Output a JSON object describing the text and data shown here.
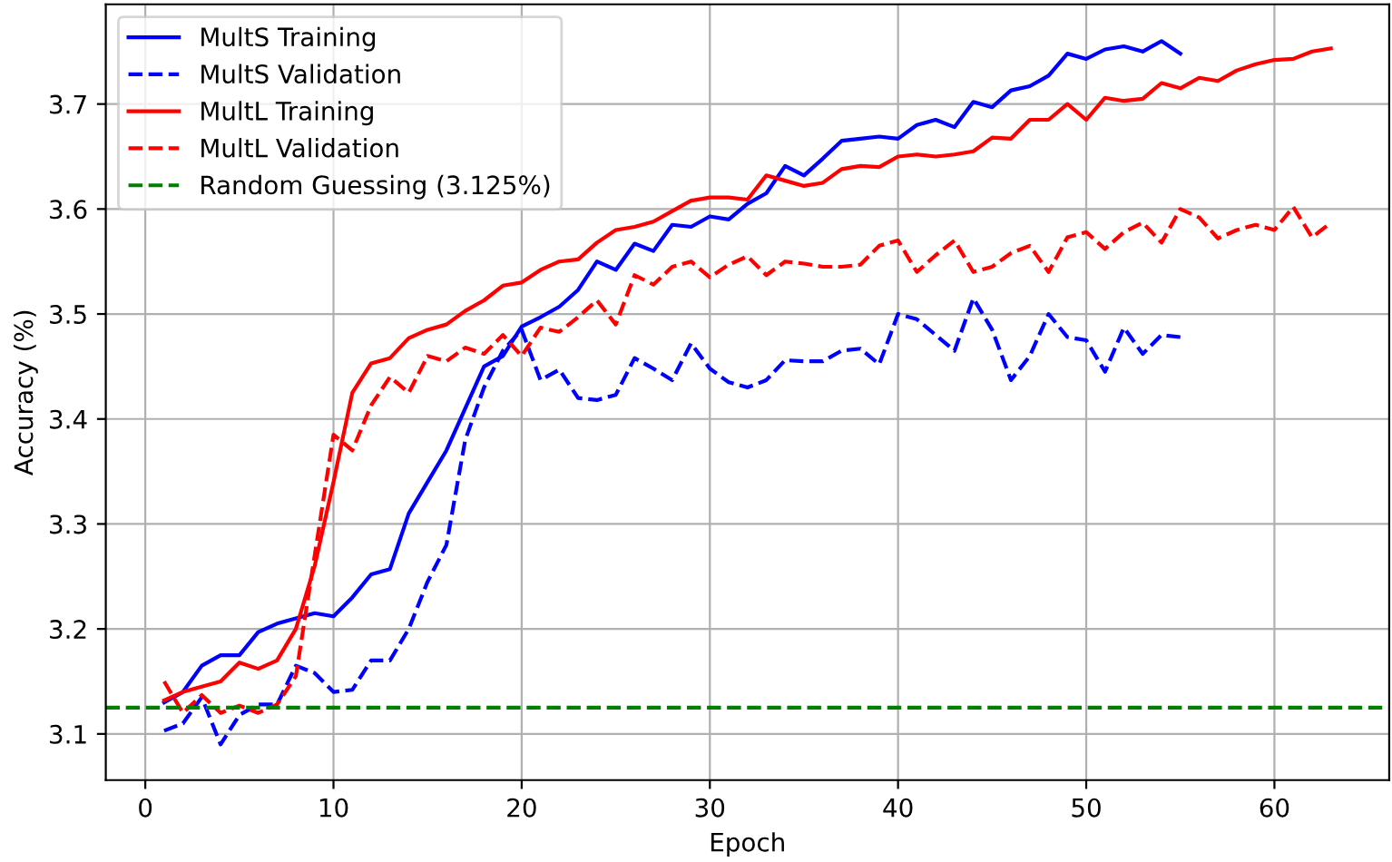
{
  "chart_data": {
    "type": "line",
    "xlabel": "Epoch",
    "ylabel": "Accuracy (%)",
    "xlim": [
      -2.1,
      66.1
    ],
    "ylim": [
      3.056,
      3.795
    ],
    "xticks": [
      0,
      10,
      20,
      30,
      40,
      50,
      60
    ],
    "yticks": [
      3.1,
      3.2,
      3.3,
      3.4,
      3.5,
      3.6,
      3.7
    ],
    "grid": true,
    "legend": "top left",
    "marker": "none",
    "series": [
      {
        "name": "MultS Training",
        "color": "#0000ff",
        "line_style": "solid",
        "x": [
          1,
          2,
          3,
          4,
          5,
          6,
          7,
          8,
          9,
          10,
          11,
          12,
          13,
          14,
          15,
          16,
          17,
          18,
          19,
          20,
          21,
          22,
          23,
          24,
          25,
          26,
          27,
          28,
          29,
          30,
          31,
          32,
          33,
          34,
          35,
          36,
          37,
          38,
          39,
          40,
          41,
          42,
          43,
          44,
          45,
          46,
          47,
          48,
          49,
          50,
          51,
          52,
          53,
          54,
          55
        ],
        "values": [
          3.13,
          3.14,
          3.165,
          3.175,
          3.175,
          3.197,
          3.205,
          3.21,
          3.215,
          3.212,
          3.23,
          3.252,
          3.257,
          3.31,
          3.34,
          3.37,
          3.41,
          3.45,
          3.46,
          3.488,
          3.497,
          3.507,
          3.523,
          3.55,
          3.542,
          3.567,
          3.56,
          3.585,
          3.583,
          3.593,
          3.59,
          3.605,
          3.615,
          3.641,
          3.632,
          3.648,
          3.665,
          3.667,
          3.669,
          3.667,
          3.68,
          3.685,
          3.678,
          3.702,
          3.697,
          3.713,
          3.717,
          3.727,
          3.748,
          3.743,
          3.752,
          3.755,
          3.75,
          3.76,
          3.748
        ]
      },
      {
        "name": "MultS Validation",
        "color": "#0000ff",
        "line_style": "dashed",
        "x": [
          1,
          2,
          3,
          4,
          5,
          6,
          7,
          8,
          9,
          10,
          11,
          12,
          13,
          14,
          15,
          16,
          17,
          18,
          19,
          20,
          21,
          22,
          23,
          24,
          25,
          26,
          27,
          28,
          29,
          30,
          31,
          32,
          33,
          34,
          35,
          36,
          37,
          38,
          39,
          40,
          41,
          42,
          43,
          44,
          45,
          46,
          47,
          48,
          49,
          50,
          51,
          52,
          53,
          54,
          55
        ],
        "values": [
          3.103,
          3.11,
          3.135,
          3.09,
          3.118,
          3.128,
          3.128,
          3.165,
          3.158,
          3.14,
          3.142,
          3.17,
          3.17,
          3.2,
          3.245,
          3.28,
          3.38,
          3.43,
          3.465,
          3.485,
          3.437,
          3.447,
          3.42,
          3.418,
          3.423,
          3.458,
          3.448,
          3.437,
          3.472,
          3.448,
          3.435,
          3.43,
          3.437,
          3.456,
          3.455,
          3.455,
          3.465,
          3.467,
          3.452,
          3.5,
          3.495,
          3.48,
          3.465,
          3.515,
          3.485,
          3.437,
          3.46,
          3.5,
          3.478,
          3.475,
          3.445,
          3.487,
          3.462,
          3.48,
          3.478
        ]
      },
      {
        "name": "MultL Training",
        "color": "#ff0000",
        "line_style": "solid",
        "x": [
          1,
          2,
          3,
          4,
          5,
          6,
          7,
          8,
          9,
          10,
          11,
          12,
          13,
          14,
          15,
          16,
          17,
          18,
          19,
          20,
          21,
          22,
          23,
          24,
          25,
          26,
          27,
          28,
          29,
          30,
          31,
          32,
          33,
          34,
          35,
          36,
          37,
          38,
          39,
          40,
          41,
          42,
          43,
          44,
          45,
          46,
          47,
          48,
          49,
          50,
          51,
          52,
          53,
          54,
          55,
          56,
          57,
          58,
          59,
          60,
          61,
          62,
          63
        ],
        "values": [
          3.132,
          3.14,
          3.145,
          3.15,
          3.168,
          3.162,
          3.17,
          3.2,
          3.26,
          3.34,
          3.425,
          3.453,
          3.458,
          3.477,
          3.485,
          3.49,
          3.503,
          3.513,
          3.527,
          3.53,
          3.542,
          3.55,
          3.552,
          3.568,
          3.58,
          3.583,
          3.588,
          3.598,
          3.608,
          3.611,
          3.611,
          3.609,
          3.632,
          3.627,
          3.622,
          3.625,
          3.638,
          3.641,
          3.64,
          3.65,
          3.652,
          3.65,
          3.652,
          3.655,
          3.668,
          3.667,
          3.685,
          3.685,
          3.7,
          3.685,
          3.706,
          3.703,
          3.705,
          3.72,
          3.715,
          3.725,
          3.722,
          3.732,
          3.738,
          3.742,
          3.743,
          3.75,
          3.753
        ]
      },
      {
        "name": "MultL Validation",
        "color": "#ff0000",
        "line_style": "dashed",
        "x": [
          1,
          2,
          3,
          4,
          5,
          6,
          7,
          8,
          9,
          10,
          11,
          12,
          13,
          14,
          15,
          16,
          17,
          18,
          19,
          20,
          21,
          22,
          23,
          24,
          25,
          26,
          27,
          28,
          29,
          30,
          31,
          32,
          33,
          34,
          35,
          36,
          37,
          38,
          39,
          40,
          41,
          42,
          43,
          44,
          45,
          46,
          47,
          48,
          49,
          50,
          51,
          52,
          53,
          54,
          55,
          56,
          57,
          58,
          59,
          60,
          61,
          62,
          63
        ],
        "values": [
          3.15,
          3.12,
          3.137,
          3.12,
          3.127,
          3.12,
          3.128,
          3.155,
          3.27,
          3.385,
          3.37,
          3.413,
          3.44,
          3.425,
          3.46,
          3.455,
          3.468,
          3.462,
          3.48,
          3.46,
          3.487,
          3.483,
          3.497,
          3.513,
          3.49,
          3.537,
          3.528,
          3.545,
          3.55,
          3.535,
          3.547,
          3.555,
          3.537,
          3.55,
          3.548,
          3.545,
          3.545,
          3.547,
          3.565,
          3.57,
          3.54,
          3.556,
          3.57,
          3.54,
          3.545,
          3.558,
          3.565,
          3.54,
          3.573,
          3.578,
          3.562,
          3.578,
          3.587,
          3.568,
          3.6,
          3.592,
          3.572,
          3.58,
          3.585,
          3.58,
          3.602,
          3.573,
          3.587
        ]
      }
    ],
    "ref_lines": [
      {
        "axis": "y",
        "value": 3.125,
        "label": "Random Guessing (3.125%)",
        "color": "#008000",
        "line_style": "dashed"
      }
    ]
  }
}
